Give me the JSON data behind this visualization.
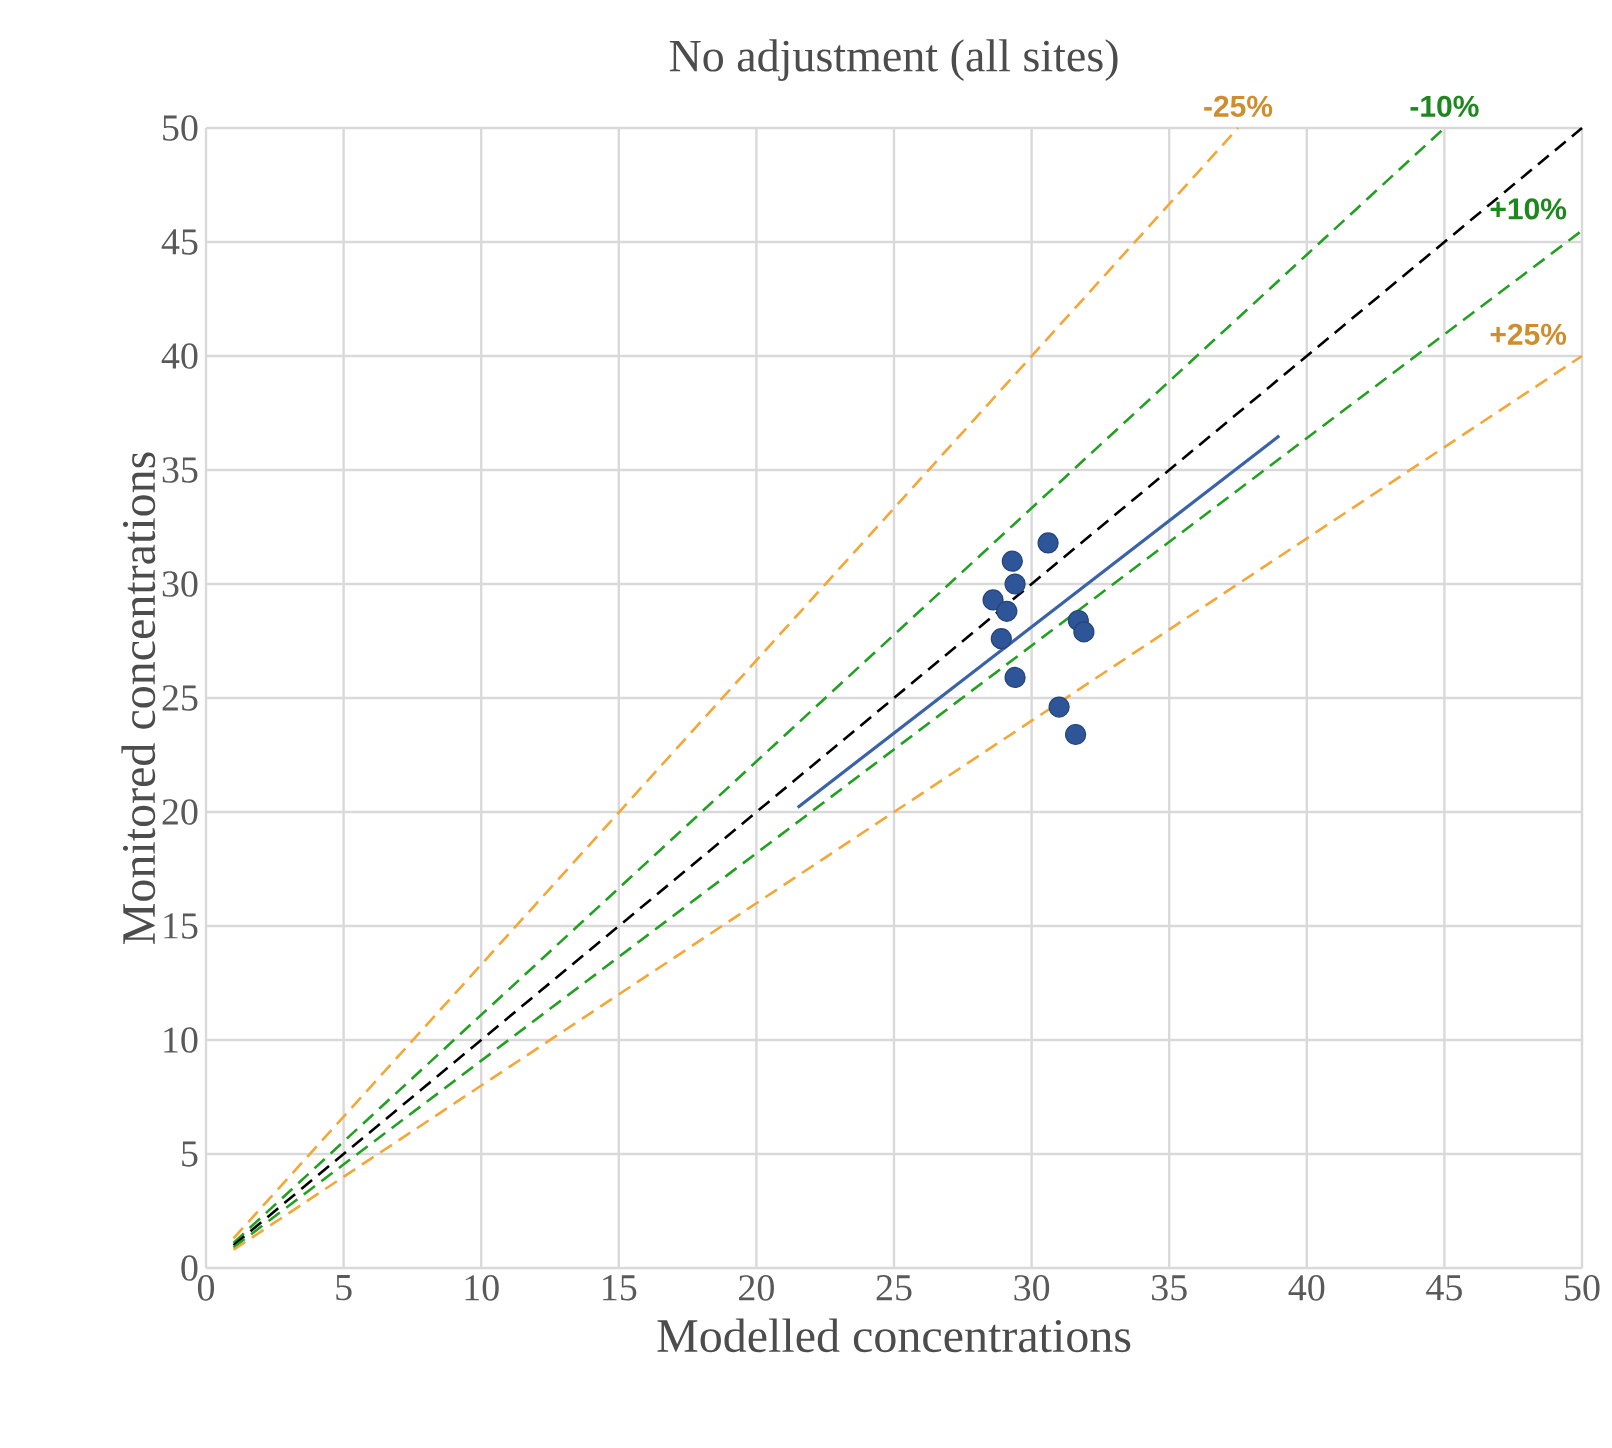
{
  "chart_data": {
    "type": "scatter",
    "title": "No adjustment (all sites)",
    "xlabel": "Modelled concentrations",
    "ylabel": "Monitored concentrations",
    "xlim": [
      0,
      50
    ],
    "ylim": [
      0,
      50
    ],
    "xticks": [
      0,
      5,
      10,
      15,
      20,
      25,
      30,
      35,
      40,
      45,
      50
    ],
    "yticks": [
      0,
      5,
      10,
      15,
      20,
      25,
      30,
      35,
      40,
      45,
      50
    ],
    "grid": true,
    "series": [
      {
        "type": "line",
        "name": "-25%",
        "color": "#f4a636",
        "line_style": "dashed",
        "marker": "none",
        "x": [
          1,
          37.5
        ],
        "values": [
          1.3,
          50
        ]
      },
      {
        "type": "line",
        "name": "-10%",
        "color": "#22a022",
        "line_style": "dashed",
        "marker": "none",
        "x": [
          1,
          45
        ],
        "values": [
          1.1,
          50
        ]
      },
      {
        "type": "line",
        "color": "#000000",
        "line_style": "dashed",
        "marker": "none",
        "x": [
          1,
          50
        ],
        "values": [
          1,
          50
        ]
      },
      {
        "type": "line",
        "name": "+10%",
        "color": "#22a022",
        "line_style": "dashed",
        "marker": "none",
        "x": [
          1,
          50
        ],
        "values": [
          0.9,
          45.5
        ]
      },
      {
        "type": "line",
        "name": "+25%",
        "color": "#f4a636",
        "line_style": "dashed",
        "marker": "none",
        "x": [
          1,
          50
        ],
        "values": [
          0.8,
          40
        ]
      },
      {
        "type": "line",
        "color": "#3a62a8",
        "line_style": "solid",
        "marker": "none",
        "x": [
          21.5,
          39
        ],
        "values": [
          20.2,
          36.5
        ]
      },
      {
        "color": "#2e5597",
        "marker": "circle",
        "x": [
          30.6,
          29.3,
          29.4,
          28.6,
          29.1,
          28.9,
          31.7,
          31.9,
          29.4,
          31.0,
          31.6
        ],
        "values": [
          31.8,
          31.0,
          30.0,
          29.3,
          28.8,
          27.6,
          28.4,
          27.9,
          25.9,
          24.6,
          23.4
        ]
      }
    ]
  }
}
